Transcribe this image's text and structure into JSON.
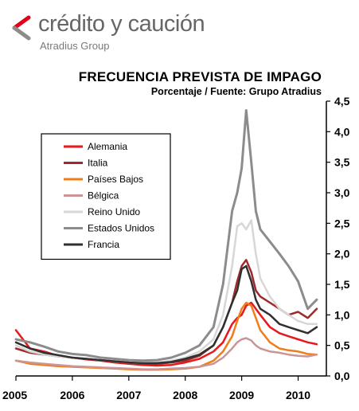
{
  "brand": {
    "name": "crédito y caución",
    "subname": "Atradius Group",
    "mark_color": "#e2001a",
    "text_color": "#666666"
  },
  "chart_data": {
    "type": "line",
    "title": "FRECUENCIA PREVISTA DE IMPAGO",
    "subtitle": "Porcentaje / Fuente: Grupo Atradius",
    "xlabel": "",
    "ylabel": "",
    "xlim": [
      2005.0,
      2010.5
    ],
    "ylim": [
      0,
      4.5
    ],
    "x_ticks": [
      2005,
      2006,
      2007,
      2008,
      2009,
      2010
    ],
    "x_tick_labels": [
      "2005",
      "2006",
      "2007",
      "2008",
      "2009",
      "2010"
    ],
    "y_ticks": [
      0,
      0.5,
      1,
      1.5,
      2,
      2.5,
      3,
      3.5,
      4,
      4.5
    ],
    "y_tick_labels": [
      "0,0",
      "0,5",
      "1,0",
      "1,5",
      "2,0",
      "2,5",
      "3,0",
      "3,5",
      "4,0",
      "4,5"
    ],
    "y_axis_side": "right",
    "grid": false,
    "legend_position": "upper-left",
    "x": [
      2005.0,
      2005.25,
      2005.5,
      2005.75,
      2006.0,
      2006.25,
      2006.5,
      2006.75,
      2007.0,
      2007.25,
      2007.5,
      2007.75,
      2008.0,
      2008.25,
      2008.5,
      2008.67,
      2008.83,
      2008.92,
      2009.0,
      2009.08,
      2009.17,
      2009.25,
      2009.33,
      2009.5,
      2009.67,
      2009.83,
      2010.0,
      2010.17,
      2010.33
    ],
    "series": [
      {
        "name": "Alemania",
        "color": "#e8191d",
        "width": 2.5,
        "values": [
          0.75,
          0.45,
          0.4,
          0.33,
          0.3,
          0.27,
          0.25,
          0.22,
          0.2,
          0.18,
          0.17,
          0.18,
          0.22,
          0.28,
          0.4,
          0.55,
          0.85,
          0.95,
          1.0,
          1.15,
          1.2,
          1.1,
          1.0,
          0.8,
          0.7,
          0.65,
          0.6,
          0.55,
          0.52
        ]
      },
      {
        "name": "Italia",
        "color": "#9e2a2b",
        "width": 2.5,
        "values": [
          0.45,
          0.38,
          0.35,
          0.32,
          0.3,
          0.28,
          0.26,
          0.24,
          0.22,
          0.2,
          0.2,
          0.22,
          0.25,
          0.33,
          0.5,
          0.8,
          1.2,
          1.55,
          1.8,
          1.9,
          1.7,
          1.4,
          1.3,
          1.2,
          1.1,
          1.0,
          1.05,
          0.95,
          1.1
        ]
      },
      {
        "name": "Países Bajos",
        "color": "#f07d1a",
        "width": 2.5,
        "values": [
          0.25,
          0.2,
          0.18,
          0.16,
          0.15,
          0.14,
          0.13,
          0.12,
          0.11,
          0.1,
          0.1,
          0.11,
          0.12,
          0.15,
          0.25,
          0.4,
          0.65,
          0.9,
          1.1,
          1.2,
          1.15,
          0.95,
          0.75,
          0.55,
          0.45,
          0.42,
          0.4,
          0.36,
          0.35
        ]
      },
      {
        "name": "Bélgica",
        "color": "#cc9494",
        "width": 2.5,
        "values": [
          0.25,
          0.22,
          0.2,
          0.18,
          0.16,
          0.15,
          0.14,
          0.13,
          0.12,
          0.11,
          0.11,
          0.12,
          0.13,
          0.15,
          0.2,
          0.3,
          0.45,
          0.55,
          0.6,
          0.62,
          0.58,
          0.5,
          0.45,
          0.4,
          0.38,
          0.35,
          0.33,
          0.32,
          0.35
        ]
      },
      {
        "name": "Reino Unido",
        "color": "#d7d7d7",
        "width": 2.5,
        "values": [
          0.5,
          0.4,
          0.35,
          0.32,
          0.3,
          0.28,
          0.26,
          0.24,
          0.22,
          0.21,
          0.22,
          0.25,
          0.3,
          0.4,
          0.6,
          1.0,
          1.8,
          2.45,
          2.5,
          2.4,
          2.55,
          2.0,
          1.6,
          1.3,
          1.1,
          1.0,
          0.9,
          0.85,
          0.85
        ]
      },
      {
        "name": "Estados Unidos",
        "color": "#8c8c8c",
        "width": 3,
        "values": [
          0.6,
          0.55,
          0.48,
          0.4,
          0.36,
          0.34,
          0.3,
          0.28,
          0.26,
          0.25,
          0.26,
          0.3,
          0.38,
          0.5,
          0.8,
          1.5,
          2.7,
          3.0,
          3.4,
          4.35,
          3.5,
          2.7,
          2.4,
          2.2,
          2.0,
          1.8,
          1.55,
          1.1,
          1.25
        ]
      },
      {
        "name": "Francia",
        "color": "#303030",
        "width": 2.5,
        "values": [
          0.55,
          0.45,
          0.38,
          0.34,
          0.3,
          0.28,
          0.26,
          0.24,
          0.22,
          0.21,
          0.21,
          0.23,
          0.28,
          0.35,
          0.5,
          0.8,
          1.2,
          1.4,
          1.75,
          1.8,
          1.55,
          1.25,
          1.1,
          1.0,
          0.85,
          0.8,
          0.75,
          0.7,
          0.8
        ]
      }
    ]
  }
}
